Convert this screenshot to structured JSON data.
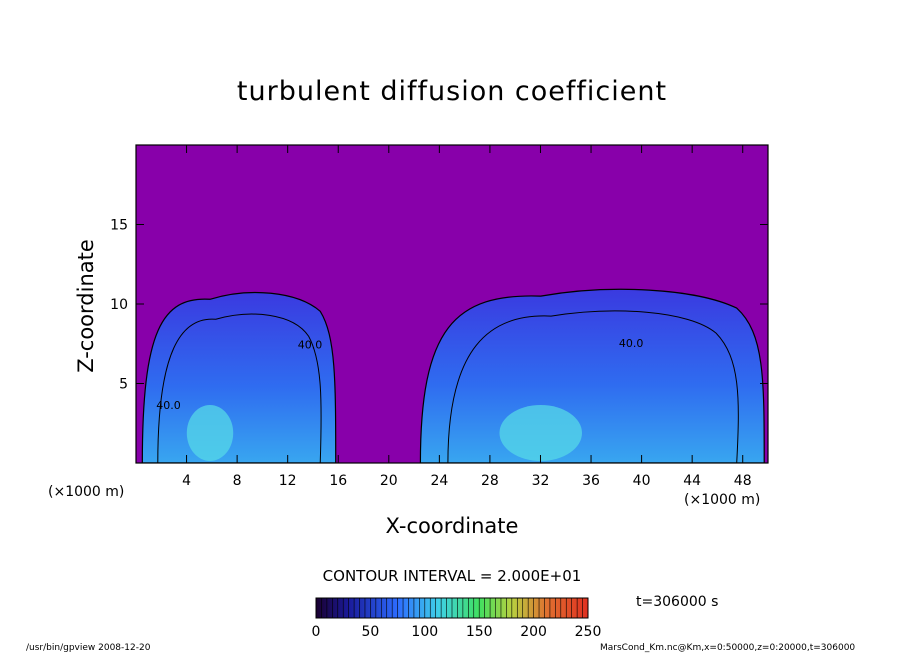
{
  "chart_data": {
    "type": "heatmap",
    "title": "turbulent diffusion coefficient",
    "xlabel": "X-coordinate",
    "ylabel": "Z-coordinate",
    "x_unit": "(×1000 m)",
    "xlim": [
      0,
      50
    ],
    "ylim": [
      0,
      20
    ],
    "x_ticks": [
      4,
      8,
      12,
      16,
      20,
      24,
      28,
      32,
      36,
      40,
      44,
      48
    ],
    "y_ticks": [
      5,
      10,
      15
    ],
    "contour_interval": "CONTOUR INTERVAL = 2.000E+01",
    "contour_labels": [
      {
        "x": 1.6,
        "z": 3.4,
        "text": "40.0"
      },
      {
        "x": 12.8,
        "z": 7.2,
        "text": "40.0"
      },
      {
        "x": 38.2,
        "z": 7.3,
        "text": "40.0"
      }
    ],
    "colorbar": {
      "min": 0,
      "max": 250,
      "ticks": [
        0,
        50,
        100,
        150,
        200,
        250
      ]
    },
    "time": "t=306000 s",
    "plumes": [
      {
        "x_min": 0.5,
        "x_max": 15.8,
        "top": 10.8
      },
      {
        "x_min": 22.5,
        "x_max": 49.7,
        "top": 11.0
      }
    ],
    "background_color": "#8800aa"
  },
  "footer": {
    "left": "/usr/bin/gpview   2008-12-20",
    "right": "MarsCond_Km.nc@Km,x=0:50000,z=0:20000,t=306000"
  }
}
